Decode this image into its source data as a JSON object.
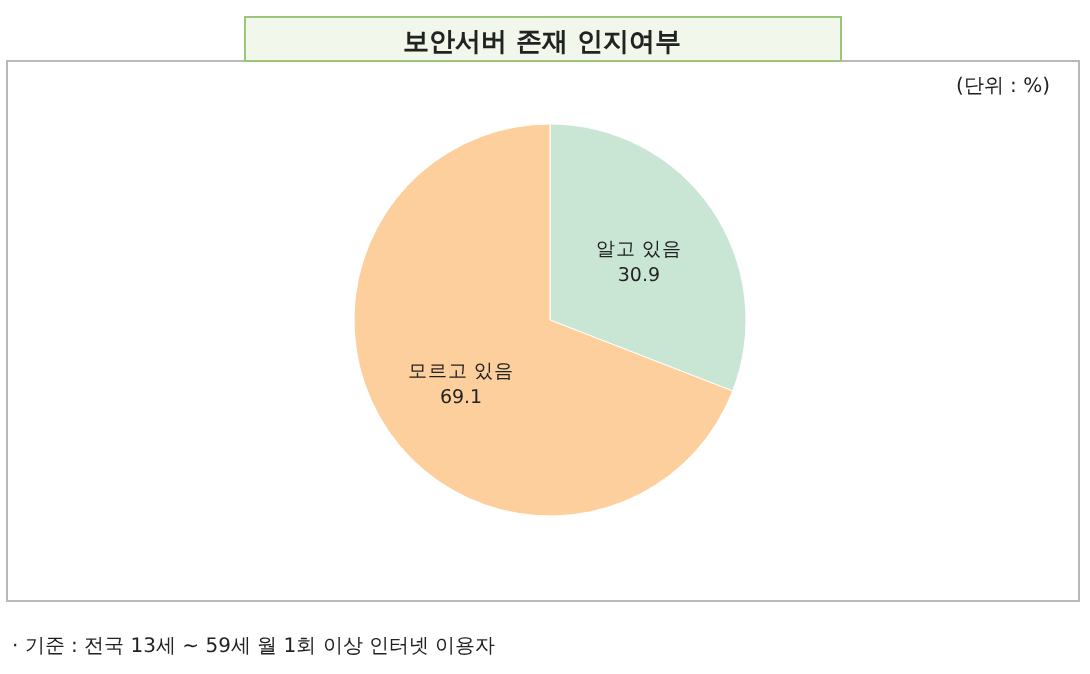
{
  "chart_data": {
    "type": "pie",
    "title": "보안서버 존재 인지여부",
    "subtitle": "(단위 : %)",
    "categories": [
      "알고 있음",
      "모르고 있음"
    ],
    "values": [
      30.9,
      69.1
    ],
    "colors": [
      "#c9e6d4",
      "#fccf9c"
    ],
    "data_labels": true,
    "annotations": [
      "· 기준 : 전국 13세 ~ 59세 월 1회 이상 인터넷 이용자"
    ]
  }
}
